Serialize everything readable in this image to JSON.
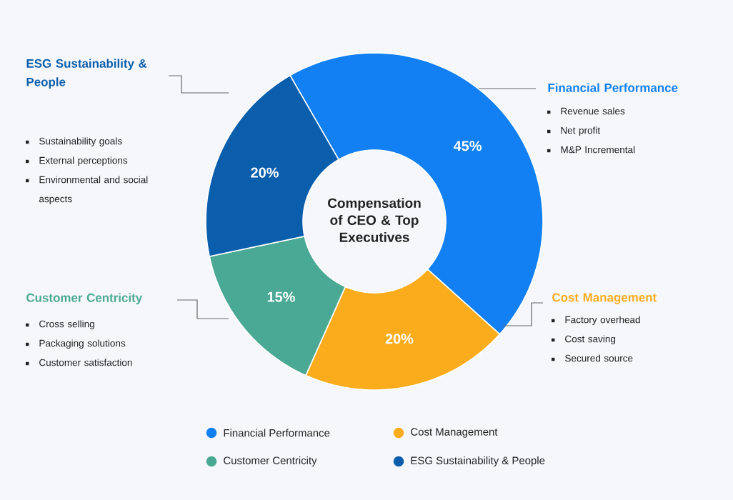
{
  "chart_data": {
    "type": "donut",
    "title": "Compensation of CEO & Top Executives",
    "categories": [
      "Financial Performance",
      "Cost Management",
      "Customer Centricity",
      "ESG Sustainability & People"
    ],
    "values": [
      45,
      20,
      15,
      20
    ],
    "value_labels": [
      "45%",
      "20%",
      "15%",
      "20%"
    ],
    "colors": [
      "#1280f2",
      "#fbac1c",
      "#4aa994",
      "#0b5eac"
    ],
    "annotations": [
      "Revenue sales",
      "Net profit",
      "M&P Incremental",
      "Factory overhead",
      "Cost  saving",
      "Secured source",
      "Cross selling",
      "Packaging solutions",
      "Customer satisfaction",
      "Sustainability goals",
      "External perceptions",
      "Environmental and social aspects"
    ],
    "legend": "bottom"
  }
}
